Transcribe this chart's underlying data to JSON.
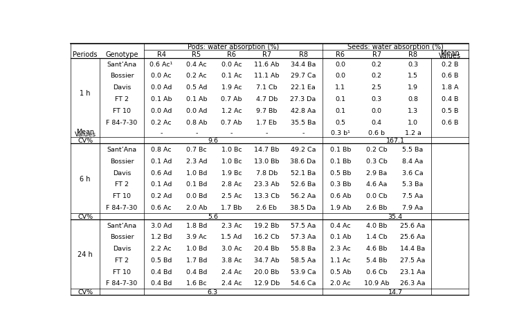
{
  "genotypes": [
    "Sant’Ana",
    "Bossier",
    "Davis",
    "FT 2",
    "FT 10",
    "F 84-7-30"
  ],
  "data_1h_pods": [
    [
      "0.6 Ac¹",
      "0.4 Ac",
      "0.0 Ac",
      "11.6 Ab",
      "34.4 Ba"
    ],
    [
      "0.0 Ac",
      "0.2 Ac",
      "0.1 Ac",
      "11.1 Ab",
      "29.7 Ca"
    ],
    [
      "0.0 Ad",
      "0.5 Ad",
      "1.9 Ac",
      "7.1 Cb",
      "22.1 Ea"
    ],
    [
      "0.1 Ab",
      "0.1 Ab",
      "0.7 Ab",
      "4.7 Db",
      "27.3 Da"
    ],
    [
      "0.0 Ad",
      "0.0 Ad",
      "1.2 Ac",
      "9.7 Bb",
      "42.8 Aa"
    ],
    [
      "0.2 Ac",
      "0.8 Ab",
      "0.7 Ab",
      "1.7 Eb",
      "35.5 Ba"
    ]
  ],
  "data_1h_seeds": [
    [
      "0.0",
      "0.2",
      "0.3",
      "0.2 B"
    ],
    [
      "0.0",
      "0.2",
      "1.5",
      "0.6 B"
    ],
    [
      "1.1",
      "2.5",
      "1.9",
      "1.8 A"
    ],
    [
      "0.1",
      "0.3",
      "0.8",
      "0.4 B"
    ],
    [
      "0.1",
      "0.0",
      "1.3",
      "0.5 B"
    ],
    [
      "0.5",
      "0.4",
      "1.0",
      "0.6 B"
    ]
  ],
  "mean_seeds_1h": [
    "0.3 b¹",
    "0.6 b",
    "1.2 a"
  ],
  "cv_pods_1h": "9.6",
  "cv_seeds_1h": "167.1",
  "data_6h_pods": [
    [
      "0.8 Ac",
      "0.7 Bc",
      "1.0 Bc",
      "14.7 Bb",
      "49.2 Ca"
    ],
    [
      "0.1 Ad",
      "2.3 Ad",
      "1.0 Bc",
      "13.0 Bb",
      "38.6 Da"
    ],
    [
      "0.6 Ad",
      "1.0 Bd",
      "1.9 Bc",
      "7.8 Db",
      "52.1 Ba"
    ],
    [
      "0.1 Ad",
      "0.1 Bd",
      "2.8 Ac",
      "23.3 Ab",
      "52.6 Ba"
    ],
    [
      "0.2 Ad",
      "0.0 Bd",
      "2.5 Ac",
      "13.3 Cb",
      "56.2 Aa"
    ],
    [
      "0.6 Ac",
      "2.0 Ab",
      "1.7 Bb",
      "2.6 Eb",
      "38.5 Da"
    ]
  ],
  "data_6h_seeds": [
    [
      "0.1 Bb",
      "0.2 Cb",
      "5.5 Ba"
    ],
    [
      "0.1 Bb",
      "0.3 Cb",
      "8.4 Aa"
    ],
    [
      "0.5 Bb",
      "2.9 Ba",
      "3.6 Ca"
    ],
    [
      "0.3 Bb",
      "4.6 Aa",
      "5.3 Ba"
    ],
    [
      "0.6 Ab",
      "0.0 Cb",
      "7.5 Aa"
    ],
    [
      "1.9 Ab",
      "2.6 Bb",
      "7.9 Aa"
    ]
  ],
  "cv_pods_6h": "5.6",
  "cv_seeds_6h": "35.4",
  "data_24h_pods": [
    [
      "3.0 Ad",
      "1.8 Bd",
      "2.3 Ac",
      "19.2 Bb",
      "57.5 Aa"
    ],
    [
      "1.2 Bd",
      "3.9 Ac",
      "1.5 Ad",
      "16.2 Cb",
      "57.3 Aa"
    ],
    [
      "2.2 Ac",
      "1.0 Bd",
      "3.0 Ac",
      "20.4 Bb",
      "55.8 Ba"
    ],
    [
      "0.5 Bd",
      "1.7 Bd",
      "3.8 Ac",
      "34.7 Ab",
      "58.5 Aa"
    ],
    [
      "0.4 Bd",
      "0.4 Bd",
      "2.4 Ac",
      "20.0 Bb",
      "53.9 Ca"
    ],
    [
      "0.4 Bd",
      "1.6 Bc",
      "2.4 Ac",
      "12.9 Db",
      "54.6 Ca"
    ]
  ],
  "data_24h_seeds": [
    [
      "0.4 Ac",
      "4.0 Bb",
      "25.6 Aa"
    ],
    [
      "0.1 Ab",
      "1.4 Cb",
      "25.6 Aa"
    ],
    [
      "2.3 Ac",
      "4.6 Bb",
      "14.4 Ba"
    ],
    [
      "1.1 Ac",
      "5.4 Bb",
      "27.5 Aa"
    ],
    [
      "0.5 Ab",
      "0.6 Cb",
      "23.1 Aa"
    ],
    [
      "2.0 Ac",
      "10.9 Ab",
      "26.3 Aa"
    ]
  ],
  "cv_pods_24h": "6.3",
  "cv_seeds_24h": "14.7",
  "font_size": 6.8,
  "bg_color": "#ffffff"
}
